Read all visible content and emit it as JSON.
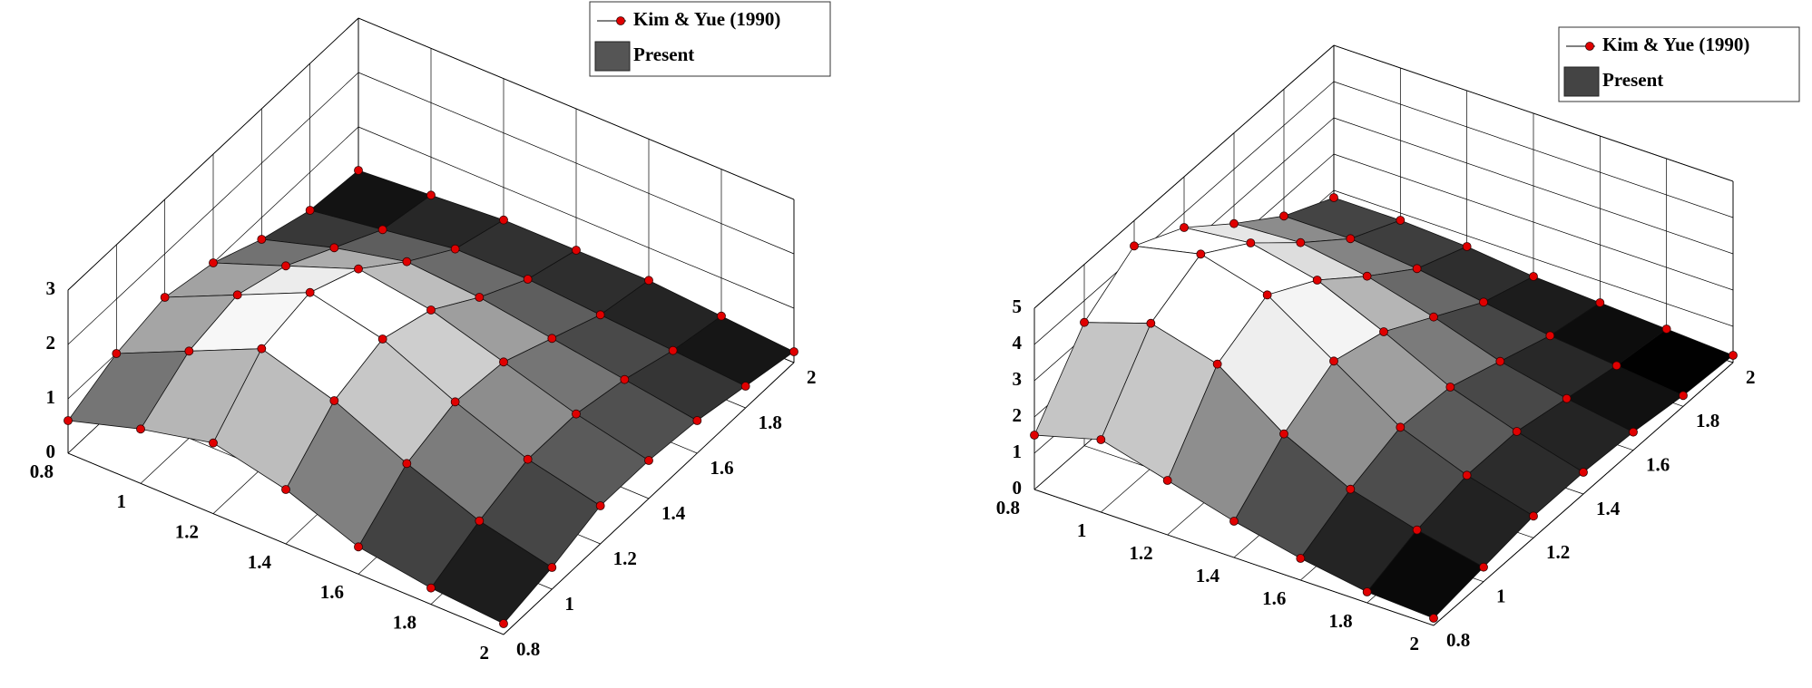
{
  "chart_data": [
    {
      "type": "surface3d",
      "x": [
        0.8,
        1,
        1.2,
        1.4,
        1.6,
        1.8,
        2
      ],
      "y": [
        0.8,
        1,
        1.2,
        1.4,
        1.6,
        1.8,
        2
      ],
      "xlim": [
        0.8,
        2
      ],
      "ylim": [
        0.8,
        2
      ],
      "zlim": [
        0,
        3
      ],
      "xticks": [
        0.8,
        1,
        1.2,
        1.4,
        1.6,
        1.8,
        2
      ],
      "yticks": [
        0.8,
        1,
        1.2,
        1.4,
        1.6,
        1.8,
        2
      ],
      "zticks": [
        0,
        1,
        2,
        3
      ],
      "grid": true,
      "legend": "northeast",
      "series": [
        {
          "name": "Kim & Yue (1990)",
          "color": "#e00000",
          "values": [
            [
              0.6,
              1.0,
              1.2,
              1.0,
              0.6,
              0.3,
              0.2
            ],
            [
              1.0,
              1.6,
              1.8,
              1.5,
              1.0,
              0.5,
              0.3
            ],
            [
              1.3,
              2.2,
              2.4,
              2.0,
              1.3,
              0.7,
              0.4
            ],
            [
              1.0,
              1.8,
              2.1,
              1.8,
              1.2,
              0.7,
              0.4
            ],
            [
              0.5,
              1.2,
              1.5,
              1.4,
              1.0,
              0.6,
              0.4
            ],
            [
              0.3,
              0.7,
              1.0,
              1.0,
              0.8,
              0.5,
              0.3
            ],
            [
              0.2,
              0.4,
              0.7,
              0.7,
              0.6,
              0.4,
              0.2
            ]
          ]
        },
        {
          "name": "Present",
          "color": "#555555",
          "colormap": "gray",
          "values": [
            [
              0.6,
              1.0,
              1.2,
              1.0,
              0.6,
              0.3,
              0.2
            ],
            [
              1.0,
              1.6,
              1.8,
              1.5,
              1.0,
              0.5,
              0.3
            ],
            [
              1.3,
              2.2,
              2.4,
              2.0,
              1.3,
              0.7,
              0.4
            ],
            [
              1.0,
              1.8,
              2.1,
              1.8,
              1.2,
              0.7,
              0.4
            ],
            [
              0.5,
              1.2,
              1.5,
              1.4,
              1.0,
              0.6,
              0.4
            ],
            [
              0.3,
              0.7,
              1.0,
              1.0,
              0.8,
              0.5,
              0.3
            ],
            [
              0.2,
              0.4,
              0.7,
              0.7,
              0.6,
              0.4,
              0.2
            ]
          ]
        }
      ]
    },
    {
      "type": "surface3d",
      "x": [
        0.8,
        1,
        1.2,
        1.4,
        1.6,
        1.8,
        2
      ],
      "y": [
        0.8,
        1,
        1.2,
        1.4,
        1.6,
        1.8,
        2
      ],
      "xlim": [
        0.8,
        2
      ],
      "ylim": [
        0.8,
        2
      ],
      "zlim": [
        0,
        5
      ],
      "xticks": [
        0.8,
        1,
        1.2,
        1.4,
        1.6,
        1.8,
        2
      ],
      "yticks": [
        0.8,
        1,
        1.2,
        1.4,
        1.6,
        1.8,
        2
      ],
      "zticks": [
        0,
        1,
        2,
        3,
        4,
        5
      ],
      "grid": true,
      "legend": "northeast",
      "series": [
        {
          "name": "Kim & Yue (1990)",
          "color": "#e00000",
          "values": [
            [
              1.5,
              3.4,
              4.3,
              3.6,
              2.5,
              1.5,
              0.8
            ],
            [
              2.0,
              4.0,
              4.7,
              3.8,
              2.6,
              1.5,
              0.8
            ],
            [
              1.5,
              3.5,
              4.2,
              3.4,
              2.3,
              1.3,
              0.7
            ],
            [
              1.0,
              2.2,
              3.0,
              2.6,
              1.8,
              1.0,
              0.5
            ],
            [
              0.6,
              1.3,
              1.8,
              1.7,
              1.2,
              0.7,
              0.4
            ],
            [
              0.3,
              0.8,
              1.1,
              1.1,
              0.8,
              0.5,
              0.3
            ],
            [
              0.2,
              0.4,
              0.6,
              0.6,
              0.5,
              0.3,
              0.2
            ]
          ]
        },
        {
          "name": "Present",
          "color": "#444444",
          "colormap": "gray",
          "values": [
            [
              1.5,
              3.4,
              4.3,
              3.6,
              2.5,
              1.5,
              0.8
            ],
            [
              2.0,
              4.0,
              4.7,
              3.8,
              2.6,
              1.5,
              0.8
            ],
            [
              1.5,
              3.5,
              4.2,
              3.4,
              2.3,
              1.3,
              0.7
            ],
            [
              1.0,
              2.2,
              3.0,
              2.6,
              1.8,
              1.0,
              0.5
            ],
            [
              0.6,
              1.3,
              1.8,
              1.7,
              1.2,
              0.7,
              0.4
            ],
            [
              0.3,
              0.8,
              1.1,
              1.1,
              0.8,
              0.5,
              0.3
            ],
            [
              0.2,
              0.4,
              0.6,
              0.6,
              0.5,
              0.3,
              0.2
            ]
          ]
        }
      ]
    }
  ]
}
